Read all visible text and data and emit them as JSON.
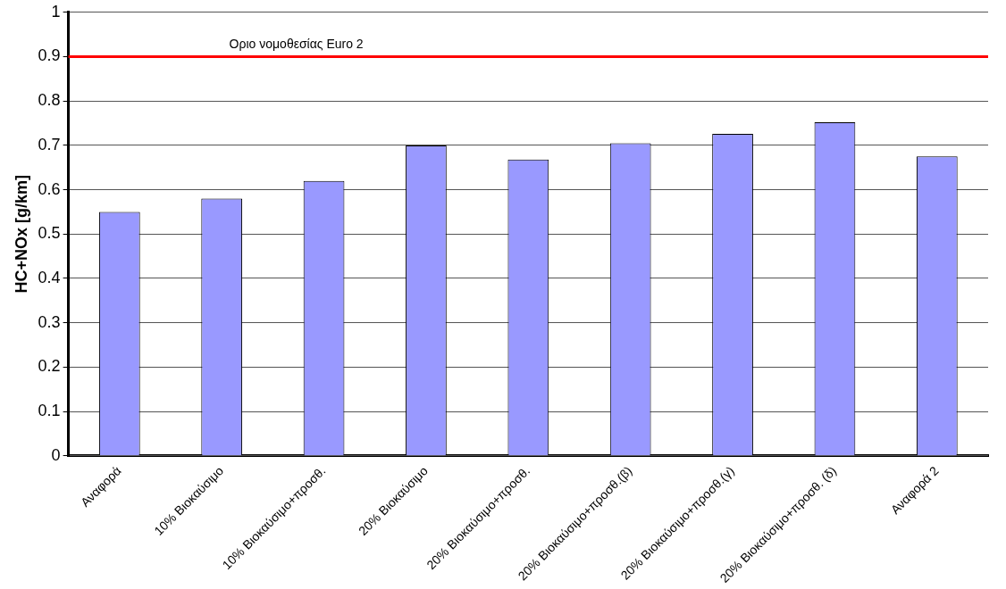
{
  "chart_data": {
    "type": "bar",
    "ylabel": "HC+NOx [g/km]",
    "categories": [
      "Αναφορά",
      "10% Βιοκαύσιμο",
      "10% Βιοκαύσιμο+προσθ.",
      "20% Βιοκαύσιμο",
      "20% Βιοκαύσιμο+προσθ.",
      "20% Βιοκαύσιμο+προσθ.(β)",
      "20% Βιοκαύσιμο+προσθ.(γ)",
      "20% Βιοκαύσιμο+προσθ. (δ)",
      "Αναφορά 2"
    ],
    "values": [
      0.55,
      0.58,
      0.62,
      0.7,
      0.668,
      0.705,
      0.726,
      0.752,
      0.675
    ],
    "color": "#9999ff",
    "ylim": [
      0,
      1
    ],
    "yticks": [
      0,
      0.1,
      0.2,
      0.3,
      0.4,
      0.5,
      0.6,
      0.7,
      0.8,
      0.9,
      1
    ],
    "grid": "y",
    "ref_lines": [
      {
        "axis": "y",
        "value": 0.9,
        "label": "Οριο νομοθεσίας Euro 2",
        "color": "#ff0000"
      }
    ]
  }
}
